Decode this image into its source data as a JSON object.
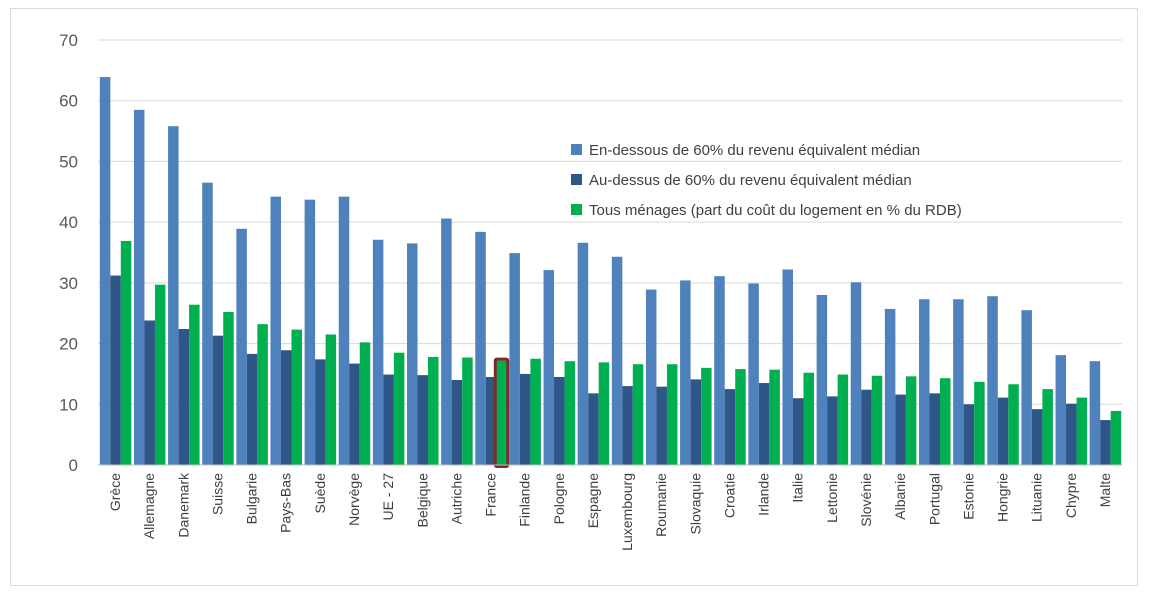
{
  "chart_data": {
    "type": "bar",
    "ylim": [
      0,
      70
    ],
    "yticks": [
      0,
      10,
      20,
      30,
      40,
      50,
      60,
      70
    ],
    "grid": true,
    "legend_position": "right",
    "highlight_category": "France",
    "highlight_color": "#7f2a2a",
    "categories": [
      "Grèce",
      "Allemagne",
      "Danemark",
      "Suisse",
      "Bulgarie",
      "Pays-Bas",
      "Suède",
      "Norvège",
      "UE - 27",
      "Belgique",
      "Autriche",
      "France",
      "Finlande",
      "Pologne",
      "Espagne",
      "Luxembourg",
      "Roumanie",
      "Slovaquie",
      "Croatie",
      "Irlande",
      "Italie",
      "Lettonie",
      "Slovénie",
      "Albanie",
      "Portugal",
      "Estonie",
      "Hongrie",
      "Lituanie",
      "Chypre",
      "Malte"
    ],
    "series": [
      {
        "name": "En-dessous de 60% du revenu équivalent médian",
        "color": "#4f81bd",
        "values": [
          63.9,
          58.5,
          55.8,
          46.5,
          38.9,
          44.2,
          43.7,
          44.2,
          37.1,
          36.5,
          40.6,
          38.4,
          34.9,
          32.1,
          36.6,
          34.3,
          28.9,
          30.4,
          31.1,
          29.9,
          32.2,
          28.0,
          30.1,
          25.7,
          27.3,
          27.3,
          27.8,
          25.5,
          18.1,
          17.1
        ]
      },
      {
        "name": "Au-dessus de 60% du revenu équivalent médian",
        "color": "#2e5686",
        "values": [
          31.2,
          23.8,
          22.4,
          21.3,
          18.3,
          18.9,
          17.4,
          16.7,
          14.9,
          14.8,
          14.0,
          14.5,
          15.0,
          14.5,
          11.8,
          13.0,
          12.9,
          14.1,
          12.5,
          13.5,
          11.0,
          11.3,
          12.4,
          11.6,
          11.8,
          10.0,
          11.1,
          9.2,
          10.1,
          7.4
        ]
      },
      {
        "name": "Tous ménages (part du coût du logement en % du RDB)",
        "color": "#00b050",
        "values": [
          36.9,
          29.7,
          26.4,
          25.2,
          23.2,
          22.3,
          21.5,
          20.2,
          18.5,
          17.8,
          17.7,
          17.2,
          17.5,
          17.1,
          16.9,
          16.6,
          16.6,
          16.0,
          15.8,
          15.7,
          15.2,
          14.9,
          14.7,
          14.6,
          14.3,
          13.7,
          13.3,
          12.5,
          11.1,
          8.9
        ]
      }
    ]
  }
}
